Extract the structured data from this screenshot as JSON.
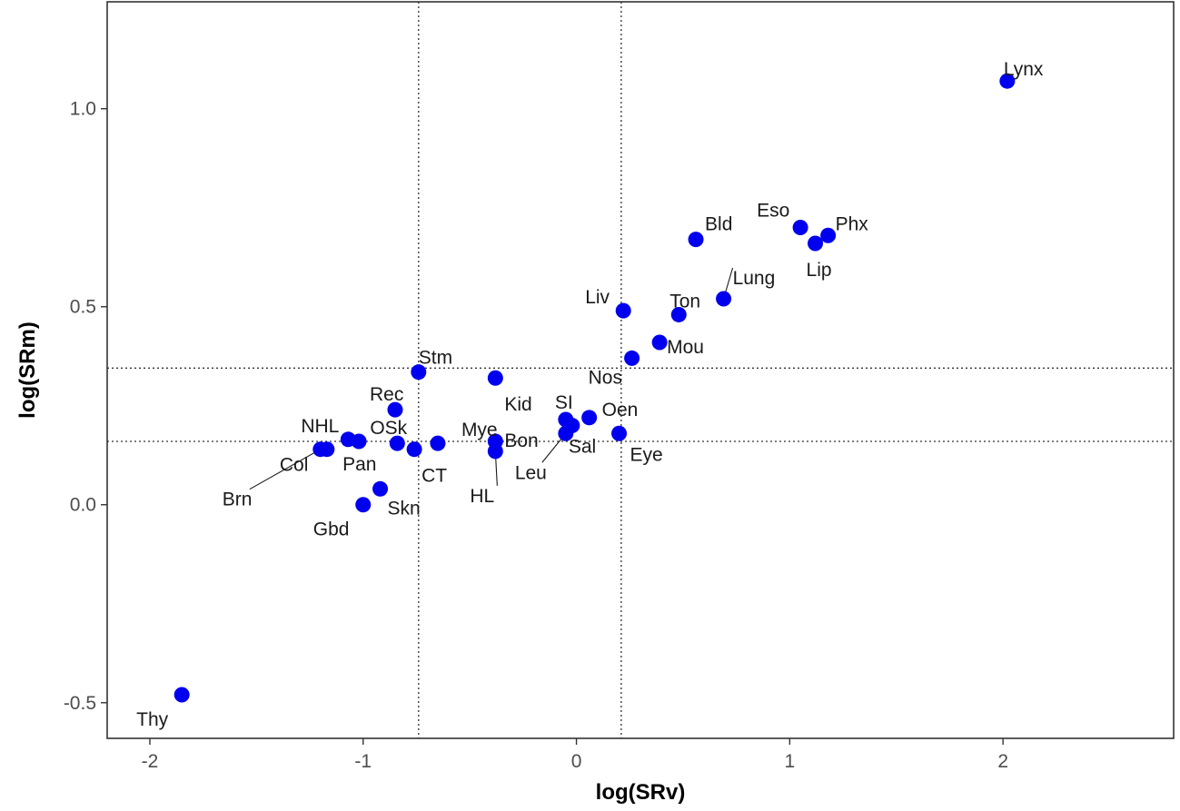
{
  "chart_data": {
    "type": "scatter",
    "xlabel": "log(SRv)",
    "ylabel": "log(SRm)",
    "xlim": [
      -2.2,
      2.8
    ],
    "ylim": [
      -0.59,
      1.27
    ],
    "x_ticks": [
      {
        "value": -2,
        "label": "-2"
      },
      {
        "value": -1,
        "label": "-1"
      },
      {
        "value": 0,
        "label": "0"
      },
      {
        "value": 1,
        "label": "1"
      },
      {
        "value": 2,
        "label": "2"
      }
    ],
    "y_ticks": [
      {
        "value": -0.5,
        "label": "-0.5"
      },
      {
        "value": 0.0,
        "label": "0.0"
      },
      {
        "value": 0.5,
        "label": "0.5"
      },
      {
        "value": 1.0,
        "label": "1.0"
      }
    ],
    "reference_lines": {
      "vertical": [
        -0.74,
        0.21
      ],
      "horizontal": [
        0.16,
        0.345
      ]
    },
    "grid": false,
    "marker_color": "#0000ee",
    "points": [
      {
        "label": "Lynx",
        "x": 2.02,
        "y": 1.07
      },
      {
        "label": "Phx",
        "x": 1.18,
        "y": 0.68
      },
      {
        "label": "Eso",
        "x": 1.05,
        "y": 0.7
      },
      {
        "label": "Lip",
        "x": 1.12,
        "y": 0.66
      },
      {
        "label": "Bld",
        "x": 0.56,
        "y": 0.67
      },
      {
        "label": "Lung",
        "x": 0.69,
        "y": 0.52
      },
      {
        "label": "Ton",
        "x": 0.48,
        "y": 0.48
      },
      {
        "label": "Liv",
        "x": 0.22,
        "y": 0.49
      },
      {
        "label": "Mou",
        "x": 0.39,
        "y": 0.41
      },
      {
        "label": "Nos",
        "x": 0.26,
        "y": 0.37
      },
      {
        "label": "Stm",
        "x": -0.74,
        "y": 0.335
      },
      {
        "label": "Kid",
        "x": -0.38,
        "y": 0.32
      },
      {
        "label": "Rec",
        "x": -0.85,
        "y": 0.24
      },
      {
        "label": "SI",
        "x": -0.05,
        "y": 0.215
      },
      {
        "label": "Oen",
        "x": 0.06,
        "y": 0.22
      },
      {
        "label": "Sal",
        "x": -0.02,
        "y": 0.2
      },
      {
        "label": "Leu",
        "x": -0.05,
        "y": 0.18
      },
      {
        "label": "Eye",
        "x": 0.2,
        "y": 0.18
      },
      {
        "label": "Bon",
        "x": -0.38,
        "y": 0.16
      },
      {
        "label": "HL",
        "x": -0.38,
        "y": 0.135
      },
      {
        "label": "Mye",
        "x": -0.65,
        "y": 0.155
      },
      {
        "label": "CT",
        "x": -0.76,
        "y": 0.14
      },
      {
        "label": "OSk",
        "x": -0.84,
        "y": 0.155
      },
      {
        "label": "NHL",
        "x": -1.07,
        "y": 0.165
      },
      {
        "label": "Pan",
        "x": -1.02,
        "y": 0.16
      },
      {
        "label": "Col",
        "x": -1.17,
        "y": 0.14
      },
      {
        "label": "Brn",
        "x": -1.2,
        "y": 0.14
      },
      {
        "label": "Skn",
        "x": -0.92,
        "y": 0.04
      },
      {
        "label": "Gbd",
        "x": -1.0,
        "y": 0.0
      },
      {
        "label": "Thy",
        "x": -1.85,
        "y": -0.48
      }
    ]
  }
}
